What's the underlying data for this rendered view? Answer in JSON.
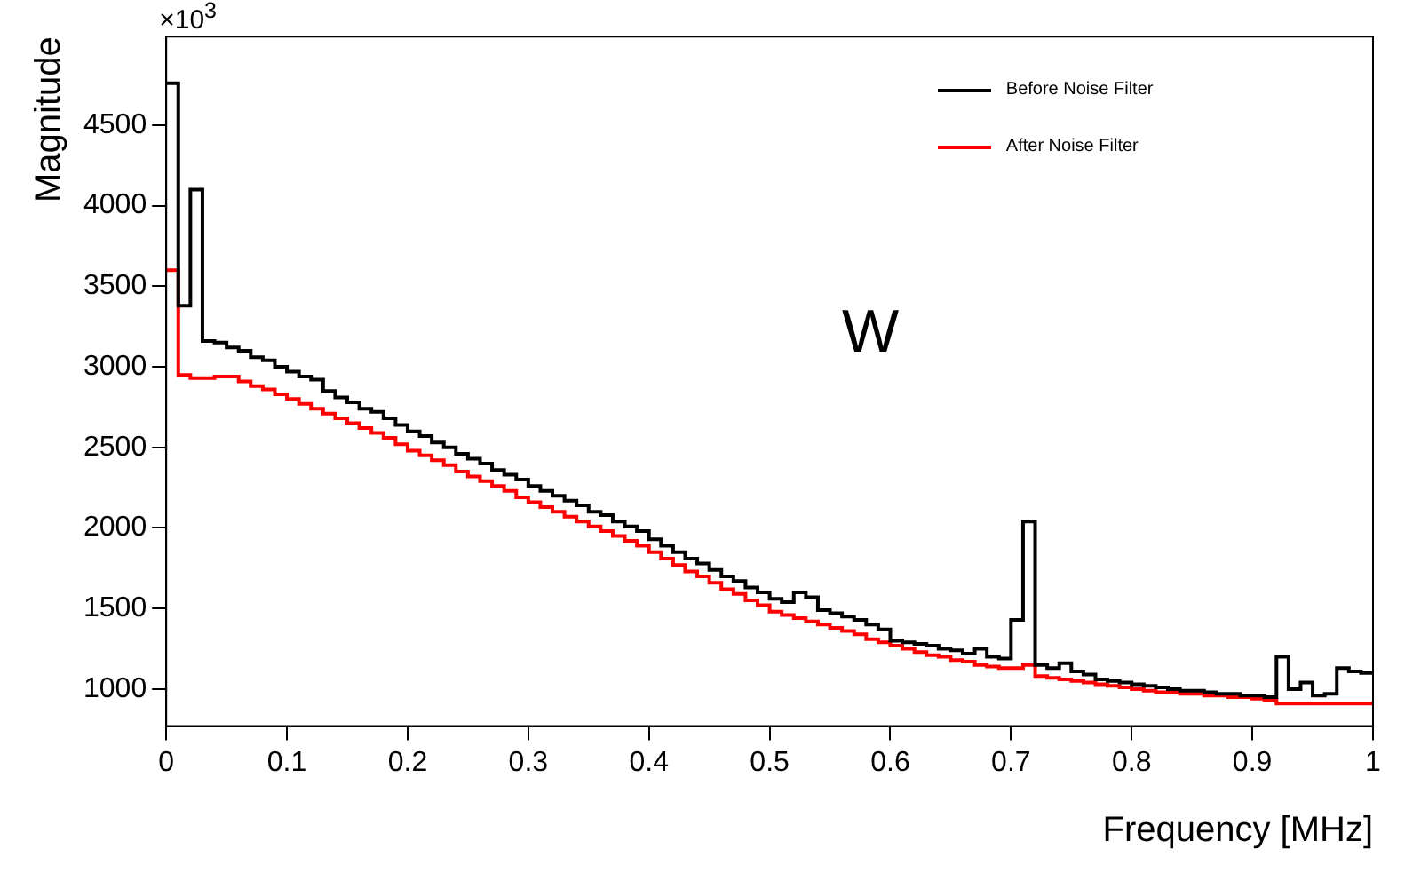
{
  "chart_data": {
    "type": "histogram",
    "xlabel": "Frequency [MHz]",
    "ylabel": "Magnitude",
    "annotations": [
      "×10$^{3}$",
      "W"
    ],
    "bins": [
      0,
      0.01,
      0.02,
      0.03,
      0.04,
      0.05,
      0.06,
      0.07,
      0.08,
      0.09,
      0.1,
      0.11,
      0.12,
      0.13,
      0.14,
      0.15,
      0.16,
      0.17,
      0.18,
      0.19,
      0.2,
      0.21,
      0.22,
      0.23,
      0.24,
      0.25,
      0.26,
      0.27,
      0.28,
      0.29,
      0.3,
      0.31,
      0.32,
      0.33,
      0.34,
      0.35,
      0.36,
      0.37,
      0.38,
      0.39,
      0.4,
      0.41,
      0.42,
      0.43,
      0.44,
      0.45,
      0.46,
      0.47,
      0.48,
      0.49,
      0.5,
      0.51,
      0.52,
      0.53,
      0.54,
      0.55,
      0.56,
      0.57,
      0.58,
      0.59,
      0.6,
      0.61,
      0.62,
      0.63,
      0.64,
      0.65,
      0.66,
      0.67,
      0.68,
      0.69,
      0.7,
      0.71,
      0.72,
      0.73,
      0.74,
      0.75,
      0.76,
      0.77,
      0.78,
      0.79,
      0.8,
      0.81,
      0.82,
      0.83,
      0.84,
      0.85,
      0.86,
      0.87,
      0.88,
      0.89,
      0.9,
      0.91,
      0.92,
      0.93,
      0.94,
      0.95,
      0.96,
      0.97,
      0.98,
      0.99,
      1
    ],
    "series": [
      {
        "name": "Before Noise Filter",
        "color": "#000000",
        "values": [
          4760,
          3380,
          4100,
          3160,
          3150,
          3120,
          3100,
          3060,
          3040,
          3000,
          2970,
          2940,
          2920,
          2850,
          2810,
          2780,
          2740,
          2720,
          2680,
          2640,
          2600,
          2570,
          2530,
          2500,
          2460,
          2430,
          2400,
          2360,
          2330,
          2300,
          2260,
          2230,
          2200,
          2170,
          2140,
          2100,
          2080,
          2040,
          2010,
          1980,
          1930,
          1890,
          1850,
          1810,
          1780,
          1740,
          1700,
          1670,
          1630,
          1600,
          1560,
          1540,
          1600,
          1570,
          1490,
          1470,
          1450,
          1430,
          1400,
          1370,
          1300,
          1290,
          1280,
          1270,
          1250,
          1240,
          1220,
          1250,
          1200,
          1190,
          1430,
          2040,
          1150,
          1130,
          1160,
          1110,
          1090,
          1060,
          1050,
          1040,
          1030,
          1020,
          1010,
          1000,
          990,
          990,
          980,
          970,
          970,
          960,
          960,
          950,
          1200,
          1000,
          1040,
          960,
          970,
          1130,
          1110,
          1100
        ]
      },
      {
        "name": "After Noise Filter",
        "color": "#ff0000",
        "values": [
          3600,
          2950,
          2930,
          2930,
          2940,
          2940,
          2910,
          2880,
          2860,
          2830,
          2800,
          2770,
          2740,
          2710,
          2680,
          2650,
          2620,
          2590,
          2560,
          2520,
          2480,
          2450,
          2420,
          2390,
          2350,
          2320,
          2290,
          2260,
          2230,
          2190,
          2160,
          2130,
          2100,
          2070,
          2040,
          2010,
          1980,
          1950,
          1920,
          1890,
          1850,
          1810,
          1770,
          1730,
          1700,
          1660,
          1620,
          1590,
          1550,
          1520,
          1480,
          1460,
          1440,
          1420,
          1400,
          1380,
          1360,
          1340,
          1310,
          1290,
          1270,
          1250,
          1230,
          1210,
          1200,
          1180,
          1170,
          1150,
          1140,
          1130,
          1130,
          1150,
          1080,
          1070,
          1060,
          1050,
          1040,
          1030,
          1020,
          1010,
          1000,
          990,
          980,
          980,
          970,
          970,
          960,
          960,
          950,
          950,
          940,
          930,
          910,
          910,
          910,
          910,
          910,
          910,
          910,
          910
        ]
      }
    ],
    "xlim": [
      0,
      1
    ],
    "xticks": [
      0,
      0.1,
      0.2,
      0.3,
      0.4,
      0.5,
      0.6,
      0.7,
      0.8,
      0.9,
      1
    ],
    "ylim": [
      770,
      5050
    ],
    "yticks": [
      1000,
      1500,
      2000,
      2500,
      3000,
      3500,
      4000,
      4500
    ],
    "grid": false,
    "legend": "top right"
  }
}
